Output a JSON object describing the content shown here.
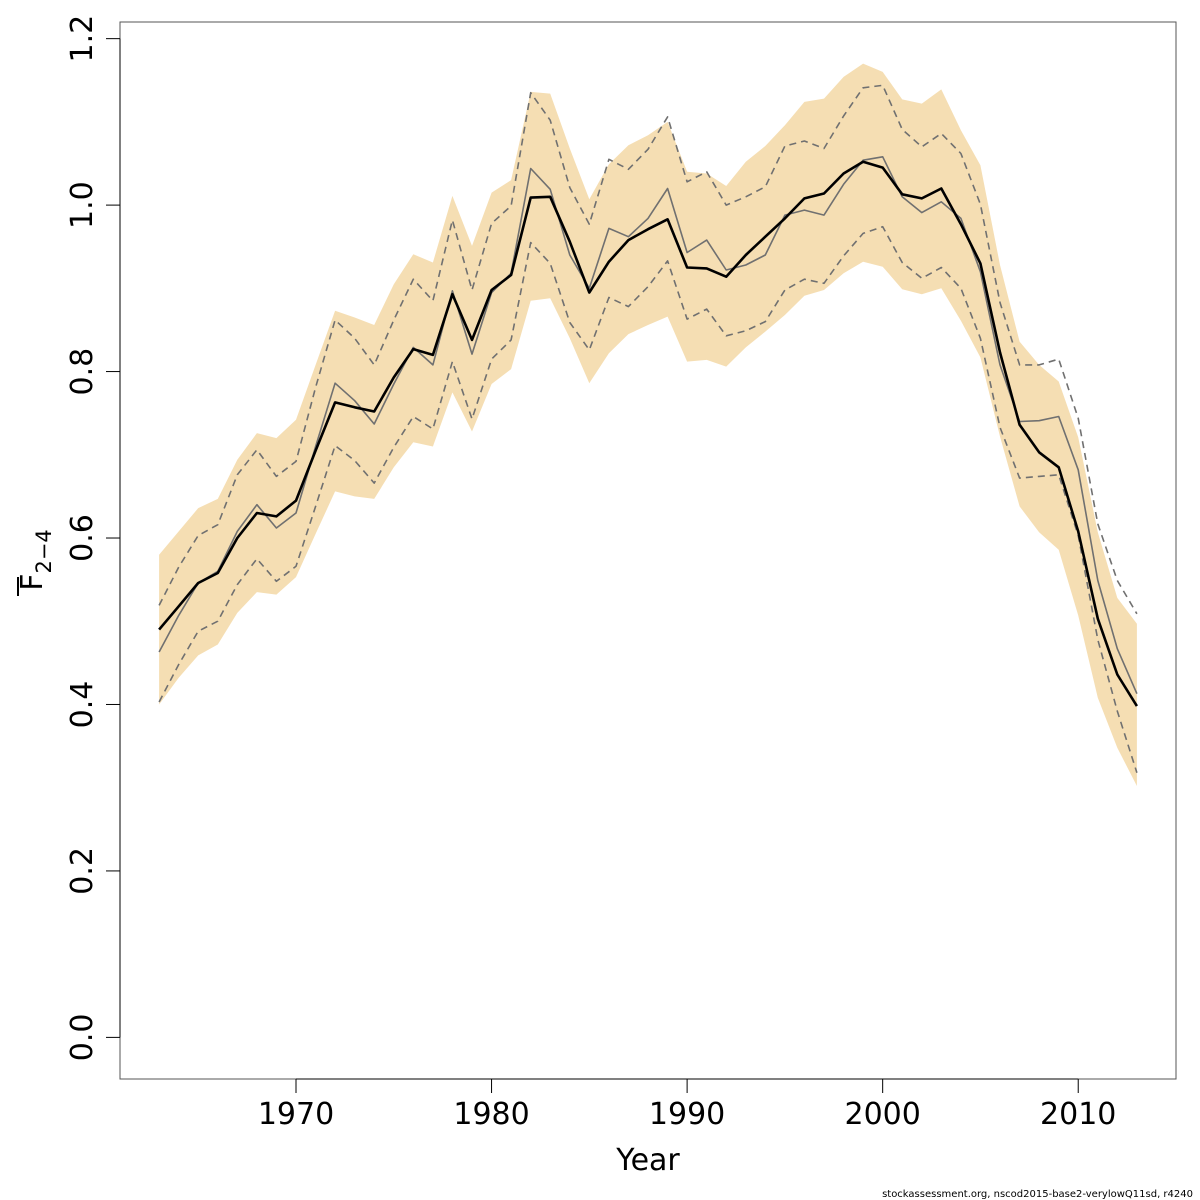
{
  "chart_data": {
    "type": "line",
    "xlabel": "Year",
    "ylabel": "F",
    "ylabel_subscript": "2−4",
    "xlim": [
      1961,
      2015
    ],
    "ylim": [
      -0.05,
      1.22
    ],
    "x_ticks": [
      1970,
      1980,
      1990,
      2000,
      2010
    ],
    "y_ticks": [
      "0.0",
      "0.2",
      "0.4",
      "0.6",
      "0.8",
      "1.0",
      "1.2"
    ],
    "grid": false,
    "x": [
      1963,
      1964,
      1965,
      1966,
      1967,
      1968,
      1969,
      1970,
      1971,
      1972,
      1973,
      1974,
      1975,
      1976,
      1977,
      1978,
      1979,
      1980,
      1981,
      1982,
      1983,
      1984,
      1985,
      1986,
      1987,
      1988,
      1989,
      1990,
      1991,
      1992,
      1993,
      1994,
      1995,
      1996,
      1997,
      1998,
      1999,
      2000,
      2001,
      2002,
      2003,
      2004,
      2005,
      2006,
      2007,
      2008,
      2009,
      2010,
      2011,
      2012,
      2013
    ],
    "series": [
      {
        "role": "estimate",
        "color": "#000000",
        "style": "solid-thick",
        "values": [
          0.49,
          0.518,
          0.546,
          0.558,
          0.6,
          0.63,
          0.626,
          0.645,
          0.705,
          0.763,
          0.757,
          0.752,
          0.793,
          0.827,
          0.82,
          0.893,
          0.838,
          0.898,
          0.916,
          1.009,
          1.01,
          0.956,
          0.895,
          0.932,
          0.958,
          0.971,
          0.983,
          0.925,
          0.924,
          0.914,
          0.94,
          0.962,
          0.984,
          1.008,
          1.014,
          1.038,
          1.052,
          1.045,
          1.013,
          1.008,
          1.02,
          0.977,
          0.93,
          0.823,
          0.736,
          0.703,
          0.685,
          0.608,
          0.503,
          0.436,
          0.398
        ]
      },
      {
        "role": "comparison-estimate",
        "color": "#707070",
        "style": "solid-thin",
        "values": [
          0.463,
          0.507,
          0.546,
          0.56,
          0.608,
          0.64,
          0.612,
          0.63,
          0.71,
          0.786,
          0.765,
          0.737,
          0.785,
          0.829,
          0.808,
          0.897,
          0.821,
          0.895,
          0.918,
          1.044,
          1.019,
          0.94,
          0.9,
          0.972,
          0.962,
          0.984,
          1.02,
          0.943,
          0.958,
          0.922,
          0.928,
          0.94,
          0.988,
          0.994,
          0.988,
          1.025,
          1.054,
          1.058,
          1.01,
          0.991,
          1.004,
          0.984,
          0.92,
          0.808,
          0.74,
          0.741,
          0.746,
          0.682,
          0.549,
          0.467,
          0.413
        ]
      },
      {
        "role": "comparison-lower",
        "color": "#707070",
        "style": "dashed",
        "values": [
          0.403,
          0.448,
          0.488,
          0.5,
          0.544,
          0.575,
          0.548,
          0.566,
          0.638,
          0.711,
          0.693,
          0.666,
          0.709,
          0.746,
          0.731,
          0.812,
          0.743,
          0.815,
          0.838,
          0.955,
          0.93,
          0.859,
          0.826,
          0.889,
          0.878,
          0.902,
          0.933,
          0.863,
          0.875,
          0.843,
          0.849,
          0.86,
          0.898,
          0.911,
          0.906,
          0.939,
          0.966,
          0.974,
          0.931,
          0.912,
          0.925,
          0.9,
          0.84,
          0.733,
          0.672,
          0.674,
          0.676,
          0.603,
          0.478,
          0.392,
          0.318
        ]
      },
      {
        "role": "comparison-upper",
        "color": "#707070",
        "style": "dashed",
        "values": [
          0.519,
          0.565,
          0.603,
          0.616,
          0.676,
          0.706,
          0.674,
          0.692,
          0.781,
          0.862,
          0.84,
          0.808,
          0.862,
          0.911,
          0.885,
          0.982,
          0.898,
          0.978,
          0.999,
          1.135,
          1.102,
          1.021,
          0.977,
          1.055,
          1.043,
          1.067,
          1.106,
          1.028,
          1.04,
          1.0,
          1.01,
          1.022,
          1.071,
          1.077,
          1.068,
          1.107,
          1.141,
          1.144,
          1.091,
          1.07,
          1.086,
          1.062,
          1.001,
          0.883,
          0.808,
          0.808,
          0.815,
          0.744,
          0.617,
          0.549,
          0.509
        ]
      },
      {
        "role": "ci-lower",
        "color": "#f5deb3",
        "style": "band",
        "values": [
          0.4,
          0.432,
          0.459,
          0.472,
          0.51,
          0.535,
          0.532,
          0.553,
          0.605,
          0.656,
          0.65,
          0.647,
          0.685,
          0.715,
          0.71,
          0.775,
          0.728,
          0.785,
          0.803,
          0.885,
          0.888,
          0.84,
          0.786,
          0.822,
          0.845,
          0.856,
          0.866,
          0.812,
          0.814,
          0.806,
          0.829,
          0.848,
          0.868,
          0.891,
          0.898,
          0.918,
          0.932,
          0.926,
          0.899,
          0.893,
          0.9,
          0.861,
          0.817,
          0.722,
          0.638,
          0.607,
          0.586,
          0.507,
          0.408,
          0.348,
          0.302
        ]
      },
      {
        "role": "ci-upper",
        "color": "#f5deb3",
        "style": "band",
        "values": [
          0.58,
          0.608,
          0.636,
          0.647,
          0.694,
          0.726,
          0.72,
          0.742,
          0.808,
          0.873,
          0.865,
          0.856,
          0.905,
          0.941,
          0.931,
          1.011,
          0.951,
          1.015,
          1.03,
          1.136,
          1.134,
          1.068,
          1.007,
          1.049,
          1.072,
          1.084,
          1.1,
          1.04,
          1.038,
          1.023,
          1.052,
          1.071,
          1.096,
          1.124,
          1.128,
          1.154,
          1.17,
          1.16,
          1.127,
          1.122,
          1.139,
          1.09,
          1.048,
          0.928,
          0.836,
          0.808,
          0.788,
          0.721,
          0.607,
          0.528,
          0.497
        ]
      }
    ],
    "band_color": "#f5deb3"
  },
  "footer": {
    "credit": "stockassessment.org, nscod2015-base2-verylowQ11sd, r4240"
  }
}
